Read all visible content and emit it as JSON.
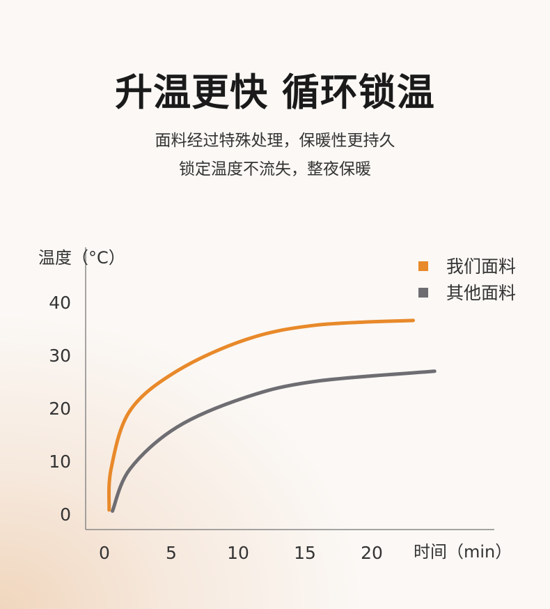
{
  "header": {
    "title": "升温更快 循环锁温",
    "subtitle_lines": [
      "面料经过特殊处理，保暖性更持久",
      "锁定温度不流失，整夜保暖"
    ]
  },
  "chart_data": {
    "type": "line",
    "ylabel": "温度（°C）",
    "xlabel": "时间（min）",
    "xlim": [
      0,
      25
    ],
    "ylim": [
      0,
      40
    ],
    "x_ticks": [
      0,
      5,
      10,
      15,
      20
    ],
    "y_ticks": [
      0,
      10,
      20,
      30,
      40
    ],
    "legend_position": "top-right",
    "grid": false,
    "series": [
      {
        "name": "我们面料",
        "color": "#e8892a",
        "x": [
          0.35,
          0.5,
          1.9,
          5.4,
          10.6,
          15.8,
          23.1
        ],
        "y": [
          0.8,
          8.6,
          19.5,
          27.0,
          33.0,
          35.7,
          36.6
        ]
      },
      {
        "name": "其他面料",
        "color": "#6e6d72",
        "x": [
          0.6,
          1.9,
          5.4,
          10.6,
          15.8,
          24.7
        ],
        "y": [
          0.6,
          8.5,
          16.4,
          22.1,
          25.1,
          27.0
        ]
      }
    ]
  }
}
